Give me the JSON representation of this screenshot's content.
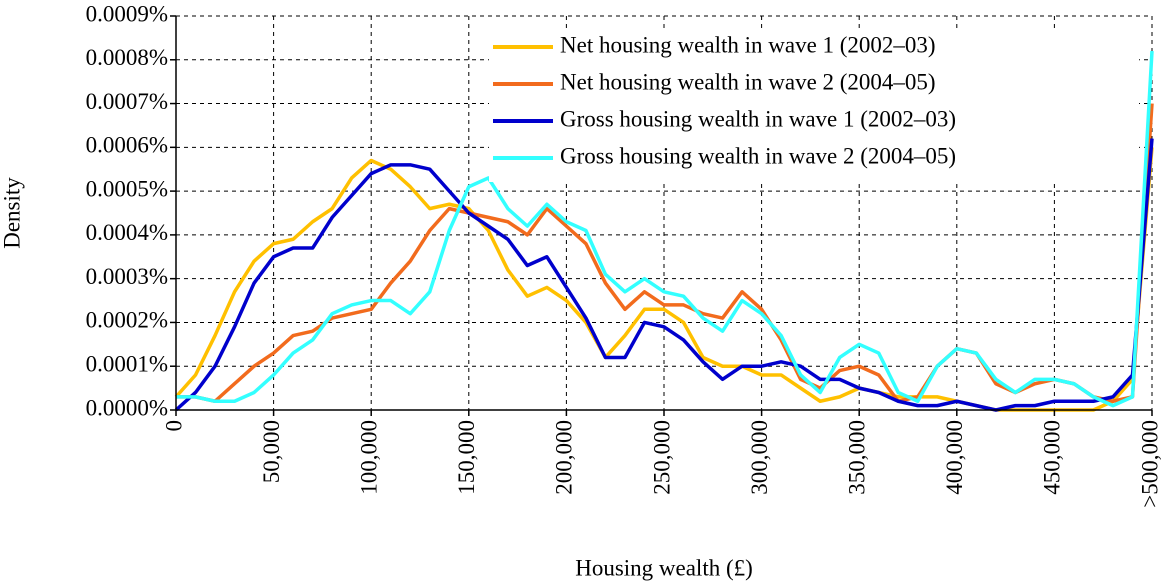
{
  "chart_data": {
    "type": "line",
    "xlabel": "Housing wealth (£)",
    "ylabel": "Density",
    "x": [
      0,
      10000,
      20000,
      30000,
      40000,
      50000,
      60000,
      70000,
      80000,
      90000,
      100000,
      110000,
      120000,
      130000,
      140000,
      150000,
      160000,
      170000,
      180000,
      190000,
      200000,
      210000,
      220000,
      230000,
      240000,
      250000,
      260000,
      270000,
      280000,
      290000,
      300000,
      310000,
      320000,
      330000,
      340000,
      350000,
      360000,
      370000,
      380000,
      390000,
      400000,
      410000,
      420000,
      430000,
      440000,
      450000,
      460000,
      470000,
      480000,
      490000,
      500000
    ],
    "series": [
      {
        "name": "Net housing wealth in wave 1 (2002–03)",
        "color": "#ffc000",
        "values": [
          3e-05,
          8e-05,
          0.00017,
          0.00027,
          0.00034,
          0.00038,
          0.00039,
          0.00043,
          0.00046,
          0.00053,
          0.00057,
          0.00055,
          0.00051,
          0.00046,
          0.00047,
          0.00046,
          0.00041,
          0.00032,
          0.00026,
          0.00028,
          0.00025,
          0.0002,
          0.00012,
          0.00017,
          0.00023,
          0.00023,
          0.0002,
          0.00012,
          0.0001,
          0.0001,
          8e-05,
          8e-05,
          5e-05,
          2e-05,
          3e-05,
          5e-05,
          4e-05,
          3e-05,
          3e-05,
          3e-05,
          2e-05,
          1e-05,
          0,
          0,
          0,
          0,
          0,
          0,
          2e-05,
          7e-05,
          0.0006
        ]
      },
      {
        "name": "Net housing wealth in wave 2 (2004–05)",
        "color": "#f26b1d",
        "values": [
          3e-05,
          3e-05,
          2e-05,
          6e-05,
          0.0001,
          0.00013,
          0.00017,
          0.00018,
          0.00021,
          0.00022,
          0.00023,
          0.00029,
          0.00034,
          0.00041,
          0.00046,
          0.00045,
          0.00044,
          0.00043,
          0.0004,
          0.00046,
          0.00042,
          0.00038,
          0.00029,
          0.00023,
          0.00027,
          0.00024,
          0.00024,
          0.00022,
          0.00021,
          0.00027,
          0.00023,
          0.00016,
          7e-05,
          5e-05,
          9e-05,
          0.0001,
          8e-05,
          2e-05,
          3e-05,
          0.0001,
          0.00014,
          0.00013,
          6e-05,
          4e-05,
          6e-05,
          7e-05,
          6e-05,
          3e-05,
          2e-05,
          3e-05,
          0.0007
        ]
      },
      {
        "name": "Gross housing wealth in wave 1 (2002–03)",
        "color": "#0000cc",
        "values": [
          0,
          4e-05,
          0.0001,
          0.00019,
          0.00029,
          0.00035,
          0.00037,
          0.00037,
          0.00044,
          0.00049,
          0.00054,
          0.00056,
          0.00056,
          0.00055,
          0.0005,
          0.00045,
          0.00042,
          0.00039,
          0.00033,
          0.00035,
          0.00028,
          0.00021,
          0.00012,
          0.00012,
          0.0002,
          0.00019,
          0.00016,
          0.00011,
          7e-05,
          0.0001,
          0.0001,
          0.00011,
          0.0001,
          7e-05,
          7e-05,
          5e-05,
          4e-05,
          2e-05,
          1e-05,
          1e-05,
          2e-05,
          1e-05,
          0,
          1e-05,
          1e-05,
          2e-05,
          2e-05,
          2e-05,
          3e-05,
          8e-05,
          0.00062
        ]
      },
      {
        "name": "Gross housing wealth in wave 2 (2004–05)",
        "color": "#33ffff",
        "values": [
          3e-05,
          3e-05,
          2e-05,
          2e-05,
          4e-05,
          8e-05,
          0.00013,
          0.00016,
          0.00022,
          0.00024,
          0.00025,
          0.00025,
          0.00022,
          0.00027,
          0.00041,
          0.00051,
          0.00053,
          0.00046,
          0.00042,
          0.00047,
          0.00043,
          0.00041,
          0.00031,
          0.00027,
          0.0003,
          0.00027,
          0.00026,
          0.00021,
          0.00018,
          0.00025,
          0.00022,
          0.00017,
          8e-05,
          4e-05,
          0.00012,
          0.00015,
          0.00013,
          4e-05,
          2e-05,
          0.0001,
          0.00014,
          0.00013,
          7e-05,
          4e-05,
          7e-05,
          7e-05,
          6e-05,
          3e-05,
          1e-05,
          3e-05,
          0.00082
        ]
      }
    ],
    "xlim": [
      0,
      500000
    ],
    "xticks": [
      0,
      {
        "value": 50000,
        "label": "50,000"
      },
      {
        "value": 100000,
        "label": "100,000"
      },
      {
        "value": 150000,
        "label": "150,000"
      },
      {
        "value": 200000,
        "label": "200,000"
      },
      {
        "value": 250000,
        "label": "250,000"
      },
      {
        "value": 300000,
        "label": "300,000"
      },
      {
        "value": 350000,
        "label": "350,000"
      },
      {
        "value": 400000,
        "label": "400,000"
      },
      {
        "value": 450000,
        "label": "450,000"
      },
      {
        "value": 500000,
        "label": ">500,000"
      }
    ],
    "ylim": [
      0,
      0.0009
    ],
    "yticks": [
      {
        "value": 0,
        "label": "0.0000%"
      },
      {
        "value": 0.0001,
        "label": "0.0001%"
      },
      {
        "value": 0.0002,
        "label": "0.0002%"
      },
      {
        "value": 0.0003,
        "label": "0.0003%"
      },
      {
        "value": 0.0004,
        "label": "0.0004%"
      },
      {
        "value": 0.0005,
        "label": "0.0005%"
      },
      {
        "value": 0.0006,
        "label": "0.0006%"
      },
      {
        "value": 0.0007,
        "label": "0.0007%"
      },
      {
        "value": 0.0008,
        "label": "0.0008%"
      },
      {
        "value": 0.0009,
        "label": "0.0009%"
      }
    ],
    "grid": true,
    "legend_position": "upper right"
  }
}
